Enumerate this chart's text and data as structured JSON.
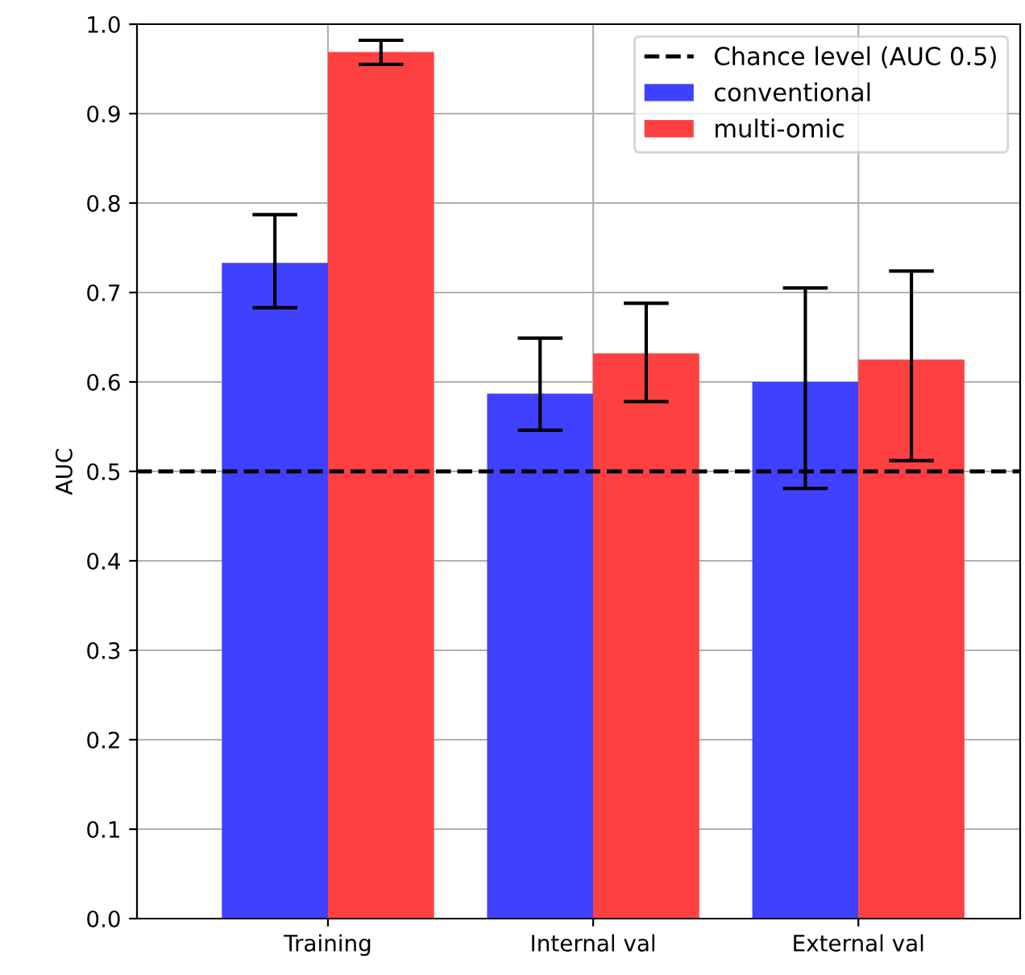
{
  "chart_data": {
    "type": "bar",
    "ylabel": "AUC",
    "categories": [
      "Training",
      "Internal val",
      "External val"
    ],
    "series": [
      {
        "name": "conventional",
        "color": "#4040ff",
        "values": [
          0.733,
          0.587,
          0.6
        ],
        "errors": [
          [
            0.683,
            0.787
          ],
          [
            0.546,
            0.649
          ],
          [
            0.481,
            0.705
          ]
        ]
      },
      {
        "name": "multi-omic",
        "color": "#ff4040",
        "values": [
          0.969,
          0.632,
          0.625
        ],
        "errors": [
          [
            0.955,
            0.982
          ],
          [
            0.578,
            0.688
          ],
          [
            0.512,
            0.724
          ]
        ]
      }
    ],
    "ref_lines": [
      {
        "axis": "y",
        "value": 0.5,
        "label": "Chance level (AUC 0.5)",
        "color": "#000000",
        "line_style": "dashed"
      }
    ],
    "ylim": [
      0,
      1.0
    ],
    "yticks": [
      {
        "value": 0,
        "label": "0.0"
      },
      0.1,
      0.2,
      0.3,
      0.4,
      0.5,
      0.6,
      0.7,
      0.8,
      0.9,
      {
        "value": 1,
        "label": "1.0"
      }
    ],
    "grid": true,
    "legend": "top right"
  }
}
